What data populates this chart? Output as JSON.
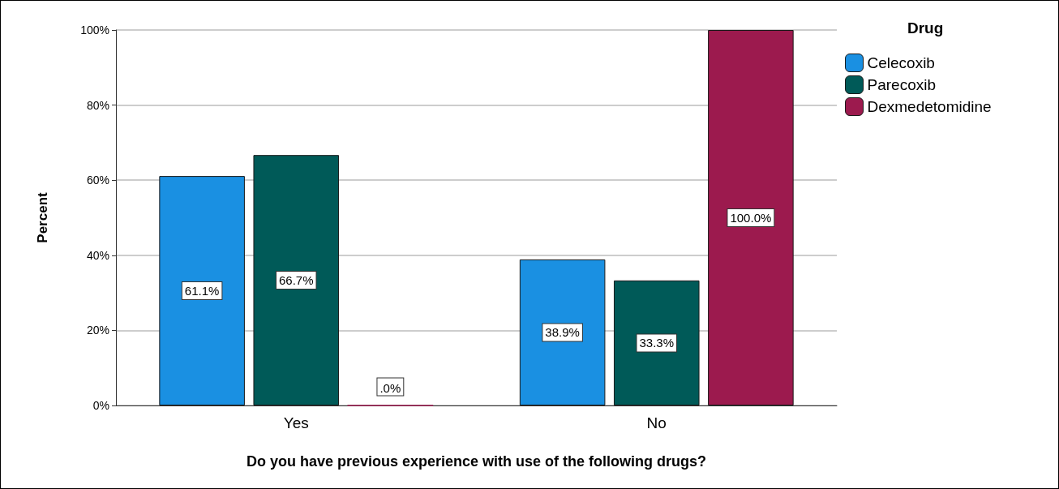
{
  "chart_data": {
    "type": "bar",
    "xlabel": "Do you have previous experience with use of the following drugs?",
    "ylabel": "Percent",
    "legend_title": "Drug",
    "categories": [
      "Yes",
      "No"
    ],
    "series": [
      {
        "name": "Celecoxib",
        "color": "#1a90e2",
        "values": [
          61.1,
          38.9
        ],
        "value_labels": [
          "61.1%",
          "38.9%"
        ]
      },
      {
        "name": "Parecoxib",
        "color": "#005a58",
        "values": [
          66.7,
          33.3
        ],
        "value_labels": [
          "66.7%",
          "33.3%"
        ]
      },
      {
        "name": "Dexmedetomidine",
        "color": "#9c1a4e",
        "values": [
          0,
          100
        ],
        "value_labels": [
          ".0%",
          "100.0%"
        ]
      }
    ],
    "ylim": [
      0,
      100
    ],
    "yticks": [
      {
        "value": 0,
        "label": "0%"
      },
      {
        "value": 20,
        "label": "20%"
      },
      {
        "value": 40,
        "label": "40%"
      },
      {
        "value": 60,
        "label": "60%"
      },
      {
        "value": 80,
        "label": "80%"
      },
      {
        "value": 100,
        "label": "100%"
      }
    ],
    "grid": "y",
    "legend": "top right"
  }
}
